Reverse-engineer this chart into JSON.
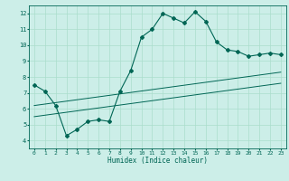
{
  "title": "",
  "xlabel": "Humidex (Indice chaleur)",
  "ylabel": "",
  "bg_color": "#cceee8",
  "line_color": "#006655",
  "grid_color": "#aaddcc",
  "xlim": [
    -0.5,
    23.5
  ],
  "ylim": [
    3.5,
    12.5
  ],
  "xticks": [
    0,
    1,
    2,
    3,
    4,
    5,
    6,
    7,
    8,
    9,
    10,
    11,
    12,
    13,
    14,
    15,
    16,
    17,
    18,
    19,
    20,
    21,
    22,
    23
  ],
  "yticks": [
    4,
    5,
    6,
    7,
    8,
    9,
    10,
    11,
    12
  ],
  "main_x": [
    0,
    1,
    2,
    3,
    4,
    5,
    6,
    7,
    8,
    9,
    10,
    11,
    12,
    13,
    14,
    15,
    16,
    17,
    18,
    19,
    20,
    21,
    22,
    23
  ],
  "main_y": [
    7.5,
    7.1,
    6.2,
    4.3,
    4.7,
    5.2,
    5.3,
    5.2,
    7.1,
    8.4,
    10.5,
    11.0,
    12.0,
    11.7,
    11.4,
    12.1,
    11.5,
    10.2,
    9.7,
    9.6,
    9.3,
    9.4,
    9.5,
    9.4
  ],
  "line1_x": [
    0,
    23
  ],
  "line1_y": [
    6.2,
    8.3
  ],
  "line2_x": [
    0,
    23
  ],
  "line2_y": [
    5.5,
    7.6
  ],
  "figsize": [
    3.2,
    2.0
  ],
  "dpi": 100
}
